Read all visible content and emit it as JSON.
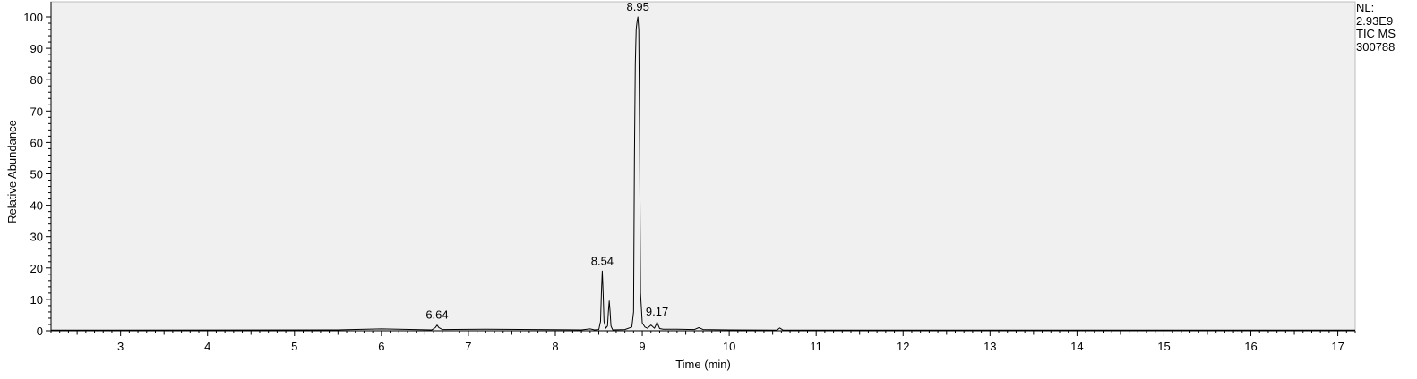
{
  "chart_data": {
    "type": "line",
    "xlabel": "Time (min)",
    "ylabel": "Relative Abundance",
    "xlim": [
      2.2,
      17.2
    ],
    "ylim": [
      0,
      100
    ],
    "x_ticks": [
      3,
      4,
      5,
      6,
      7,
      8,
      9,
      10,
      11,
      12,
      13,
      14,
      15,
      16,
      17
    ],
    "y_ticks": [
      0,
      10,
      20,
      30,
      40,
      50,
      60,
      70,
      80,
      90,
      100
    ],
    "grid": false,
    "plot_background": "#f0f0f0",
    "line_color": "#000000",
    "series": [
      {
        "x": [
          2.2,
          5.5,
          6.0,
          6.58,
          6.62,
          6.64,
          6.66,
          6.7,
          7.2,
          8.3,
          8.4,
          8.45,
          8.5,
          8.52,
          8.53,
          8.54,
          8.55,
          8.56,
          8.58,
          8.6,
          8.61,
          8.62,
          8.63,
          8.64,
          8.66,
          8.8,
          8.88,
          8.9,
          8.91,
          8.92,
          8.93,
          8.94,
          8.95,
          8.96,
          8.97,
          8.98,
          9.0,
          9.03,
          9.06,
          9.1,
          9.14,
          9.16,
          9.17,
          9.18,
          9.2,
          9.24,
          9.4,
          9.6,
          9.65,
          9.7,
          10.0,
          10.55,
          10.58,
          10.62,
          11.0,
          17.2
        ],
        "y": [
          0.2,
          0.3,
          0.6,
          0.3,
          1.0,
          1.8,
          1.0,
          0.4,
          0.5,
          0.3,
          0.6,
          0.3,
          0.4,
          3.0,
          12.0,
          19.0,
          12.0,
          3.0,
          0.8,
          1.5,
          6.0,
          9.5,
          6.0,
          1.5,
          0.3,
          0.4,
          1.2,
          6.0,
          55.0,
          85.0,
          96.0,
          98.5,
          100.0,
          96.0,
          60.0,
          12.0,
          2.5,
          1.2,
          0.8,
          1.8,
          0.8,
          2.0,
          2.8,
          2.0,
          0.7,
          0.5,
          0.5,
          0.4,
          1.0,
          0.4,
          0.3,
          0.2,
          0.9,
          0.2,
          0.2,
          0.2
        ]
      }
    ],
    "peak_labels": [
      {
        "text": "6.64",
        "x": 6.64,
        "y": 1.8
      },
      {
        "text": "8.54",
        "x": 8.54,
        "y": 19.0
      },
      {
        "text": "8.95",
        "x": 8.95,
        "y": 100.0
      },
      {
        "text": "9.17",
        "x": 9.17,
        "y": 2.8
      }
    ]
  },
  "info": {
    "nl_label": "NL:",
    "nl_value": "2.93E9",
    "scan_label": "TIC  MS",
    "file_id": "300788"
  }
}
